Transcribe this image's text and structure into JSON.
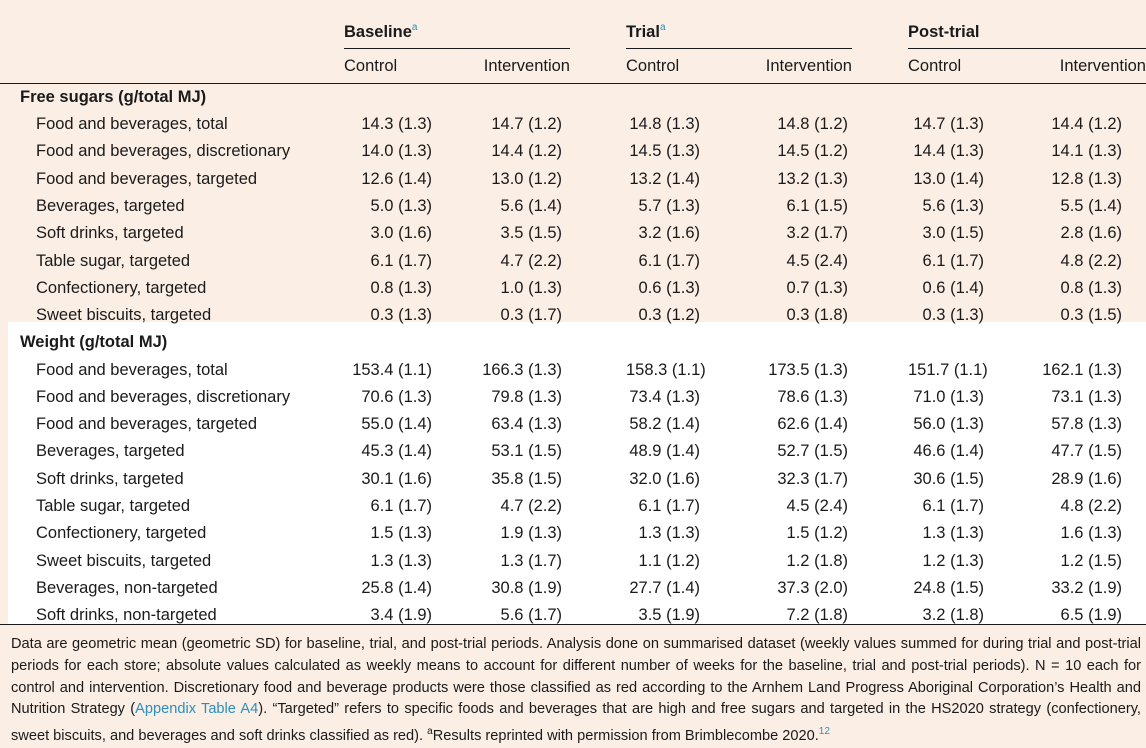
{
  "header": {
    "groups": [
      {
        "label": "Baseline",
        "sup": "a"
      },
      {
        "label": "Trial",
        "sup": "a"
      },
      {
        "label": "Post-trial",
        "sup": ""
      }
    ],
    "subcols": [
      "Control",
      "Intervention",
      "Control",
      "Intervention",
      "Control",
      "Intervention"
    ]
  },
  "sections": [
    {
      "title": "Free sugars (g/total MJ)",
      "rows": [
        {
          "label": "Food and beverages, total",
          "values": [
            "14.3 (1.3)",
            "14.7 (1.2)",
            "14.8 (1.3)",
            "14.8 (1.2)",
            "14.7 (1.3)",
            "14.4 (1.2)"
          ]
        },
        {
          "label": "Food and beverages, discretionary",
          "values": [
            "14.0 (1.3)",
            "14.4 (1.2)",
            "14.5 (1.3)",
            "14.5 (1.2)",
            "14.4 (1.3)",
            "14.1 (1.3)"
          ]
        },
        {
          "label": "Food and beverages, targeted",
          "values": [
            "12.6 (1.4)",
            "13.0 (1.2)",
            "13.2 (1.4)",
            "13.2 (1.3)",
            "13.0 (1.4)",
            "12.8 (1.3)"
          ]
        },
        {
          "label": "Beverages, targeted",
          "values": [
            "5.0 (1.3)",
            "5.6 (1.4)",
            "5.7 (1.3)",
            "6.1 (1.5)",
            "5.6 (1.3)",
            "5.5 (1.4)"
          ]
        },
        {
          "label": "Soft drinks, targeted",
          "values": [
            "3.0 (1.6)",
            "3.5 (1.5)",
            "3.2 (1.6)",
            "3.2 (1.7)",
            "3.0 (1.5)",
            "2.8 (1.6)"
          ]
        },
        {
          "label": "Table sugar, targeted",
          "values": [
            "6.1 (1.7)",
            "4.7 (2.2)",
            "6.1 (1.7)",
            "4.5 (2.4)",
            "6.1 (1.7)",
            "4.8 (2.2)"
          ]
        },
        {
          "label": "Confectionery, targeted",
          "values": [
            "0.8 (1.3)",
            "1.0 (1.3)",
            "0.6 (1.3)",
            "0.7 (1.3)",
            "0.6 (1.4)",
            "0.8 (1.3)"
          ]
        },
        {
          "label": "Sweet biscuits, targeted",
          "values": [
            "0.3 (1.3)",
            "0.3 (1.7)",
            "0.3 (1.2)",
            "0.3 (1.8)",
            "0.3 (1.3)",
            "0.3 (1.5)"
          ]
        }
      ]
    },
    {
      "title": "Weight (g/total MJ)",
      "rows": [
        {
          "label": "Food and beverages, total",
          "values": [
            "153.4 (1.1)",
            "166.3 (1.3)",
            "158.3 (1.1)",
            "173.5 (1.3)",
            "151.7 (1.1)",
            "162.1 (1.3)"
          ]
        },
        {
          "label": "Food and beverages, discretionary",
          "values": [
            "70.6 (1.3)",
            "79.8 (1.3)",
            "73.4 (1.3)",
            "78.6 (1.3)",
            "71.0 (1.3)",
            "73.1 (1.3)"
          ]
        },
        {
          "label": "Food and beverages, targeted",
          "values": [
            "55.0 (1.4)",
            "63.4 (1.3)",
            "58.2 (1.4)",
            "62.6 (1.4)",
            "56.0 (1.3)",
            "57.8 (1.3)"
          ]
        },
        {
          "label": "Beverages, targeted",
          "values": [
            "45.3 (1.4)",
            "53.1 (1.5)",
            "48.9 (1.4)",
            "52.7 (1.5)",
            "46.6 (1.4)",
            "47.7 (1.5)"
          ]
        },
        {
          "label": "Soft drinks, targeted",
          "values": [
            "30.1 (1.6)",
            "35.8 (1.5)",
            "32.0 (1.6)",
            "32.3 (1.7)",
            "30.6 (1.5)",
            "28.9 (1.6)"
          ]
        },
        {
          "label": "Table sugar, targeted",
          "values": [
            "6.1 (1.7)",
            "4.7 (2.2)",
            "6.1 (1.7)",
            "4.5 (2.4)",
            "6.1 (1.7)",
            "4.8 (2.2)"
          ]
        },
        {
          "label": "Confectionery, targeted",
          "values": [
            "1.5 (1.3)",
            "1.9 (1.3)",
            "1.3 (1.3)",
            "1.5 (1.2)",
            "1.3 (1.3)",
            "1.6 (1.3)"
          ]
        },
        {
          "label": "Sweet biscuits, targeted",
          "values": [
            "1.3 (1.3)",
            "1.3 (1.7)",
            "1.1 (1.2)",
            "1.2 (1.8)",
            "1.2 (1.3)",
            "1.2 (1.5)"
          ]
        },
        {
          "label": "Beverages, non-targeted",
          "values": [
            "25.8 (1.4)",
            "30.8 (1.9)",
            "27.7 (1.4)",
            "37.3 (2.0)",
            "24.8 (1.5)",
            "33.2 (1.9)"
          ]
        },
        {
          "label": "Soft drinks, non-targeted",
          "values": [
            "3.4 (1.9)",
            "5.6 (1.7)",
            "3.5 (1.9)",
            "7.2 (1.8)",
            "3.2 (1.8)",
            "6.5 (1.9)"
          ]
        }
      ]
    }
  ],
  "footnote": {
    "part1": "Data are geometric mean (geometric SD) for baseline, trial, and post-trial periods. Analysis done on summarised dataset (weekly values summed for during trial and post-trial periods for each store; absolute values calculated as weekly means to account for different number of weeks for the baseline, trial and post-trial periods). N = 10 each for control and intervention. Discretionary food and beverage products were those classified as red according to the Arnhem Land Progress Aboriginal Corporation’s Health and Nutrition Strategy (",
    "link": "Appendix Table A4",
    "part2": "). “Targeted” refers to specific foods and beverages that are high and free sugars and targeted in the HS2020 strategy (confectionery, sweet biscuits, and beverages and soft drinks classified as red). ",
    "sup_a": "a",
    "part3": "Results reprinted with permission from Brimblecombe 2020.",
    "ref": "12"
  }
}
